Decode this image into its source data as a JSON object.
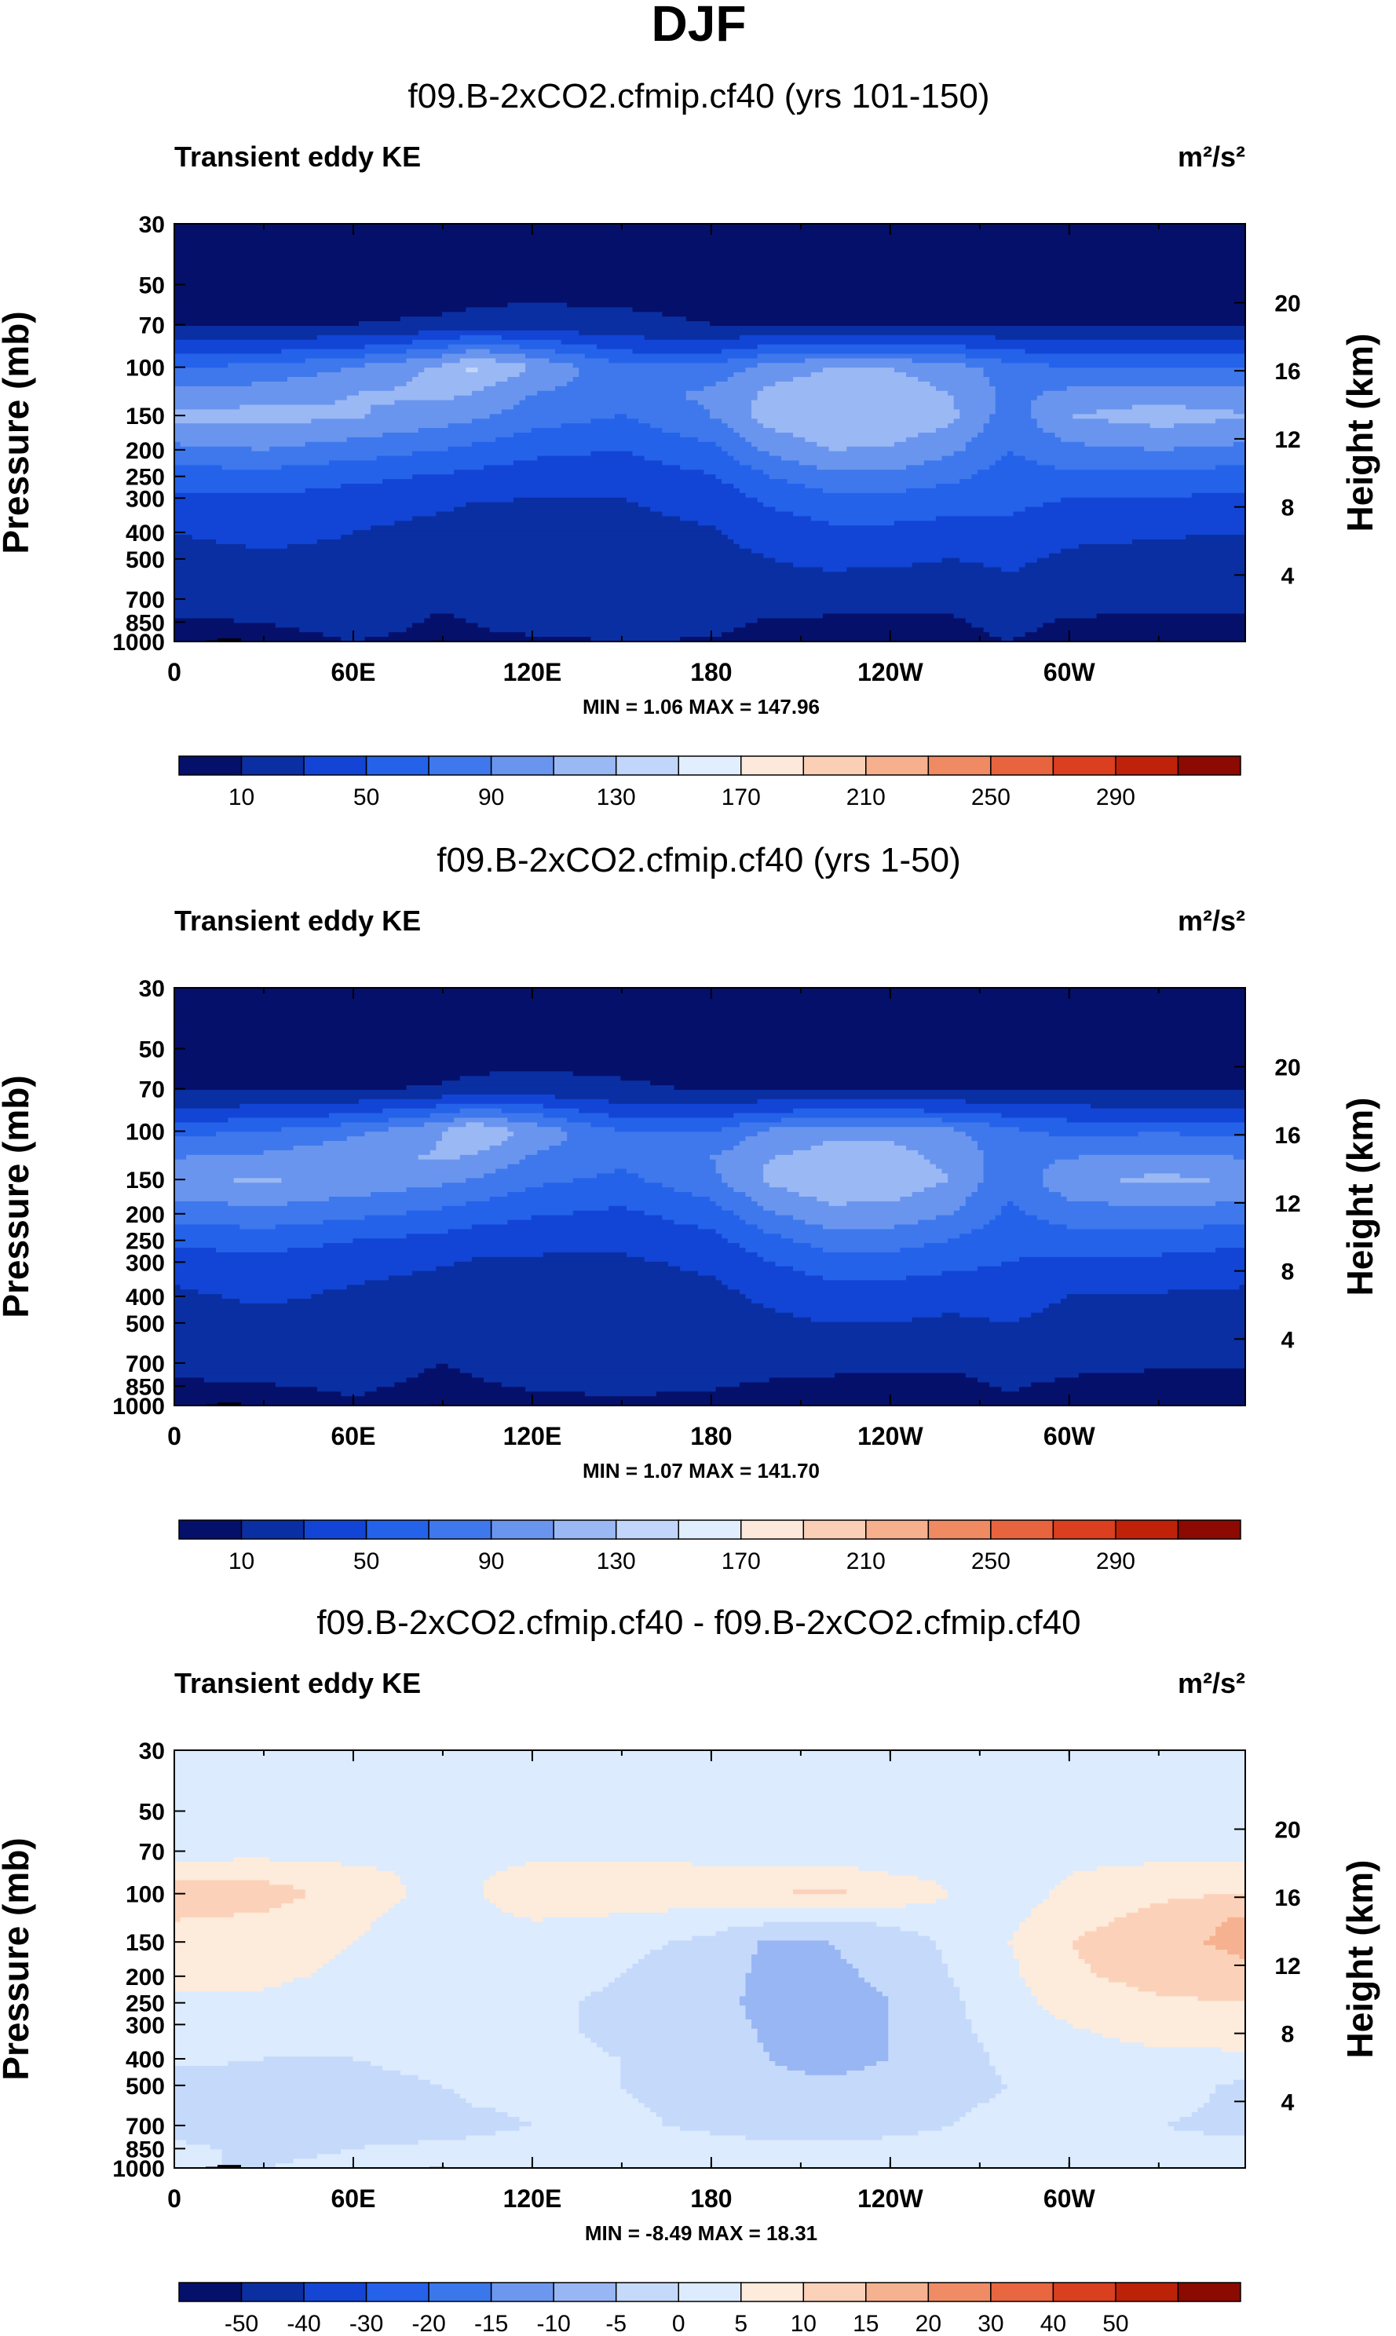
{
  "title": "DJF",
  "colors": {
    "main_cmap": [
      "#05106b",
      "#0a2fa3",
      "#1245d6",
      "#2462ea",
      "#3e78ec",
      "#6a95ee",
      "#9ab8f4",
      "#c1d6fa",
      "#e1eefe",
      "#fde9db",
      "#fbcfb6",
      "#f6b08e",
      "#ef8a63",
      "#e8643f",
      "#db3f1f",
      "#bf2208",
      "#8c0a02"
    ],
    "diff_cmap": [
      "#04106a",
      "#0b2ea1",
      "#1545d5",
      "#2561e9",
      "#3a77eb",
      "#6d97ee",
      "#98b6f4",
      "#c5d9fb",
      "#dcebfd",
      "#fdebdc",
      "#fbd2b9",
      "#f6b290",
      "#ef8c65",
      "#e86640",
      "#da3f20",
      "#bc2208",
      "#8b0a02"
    ]
  },
  "chart_data": [
    {
      "type": "contour",
      "name": "upper",
      "title": "f09.B-2xCO2.cfmip.cf40 (yrs 101-150)",
      "left_label": "Transient eddy KE",
      "units": "m²/s²",
      "ylabel": "Pressure (mb)",
      "y2label": "Height (km)",
      "x_ticks": [
        "0",
        "60E",
        "120E",
        "180",
        "120W",
        "60W"
      ],
      "p_ticks": [
        "30",
        "50",
        "70",
        "100",
        "150",
        "200",
        "250",
        "300",
        "400",
        "500",
        "700",
        "850",
        "1000"
      ],
      "h_ticks": [
        "20",
        "16",
        "12",
        "8",
        "4"
      ],
      "stats": "MIN =   1.06   MAX = 147.96",
      "min": 1.06,
      "max": 147.96,
      "levels": [
        10,
        30,
        50,
        70,
        90,
        110,
        130,
        150,
        170,
        190,
        210,
        230,
        250,
        270,
        290
      ],
      "colorbar_labels": [
        "10",
        "50",
        "90",
        "130",
        "170",
        "210",
        "250",
        "290"
      ],
      "cmap": "main",
      "field": {
        "x": [
          0,
          30,
          60,
          90,
          100,
          120,
          150,
          180,
          200,
          220,
          240,
          260,
          280,
          300,
          330,
          359
        ],
        "p": [
          30,
          50,
          70,
          85,
          100,
          125,
          150,
          200,
          250,
          300,
          400,
          500,
          700,
          850,
          1000
        ],
        "v": [
          [
            3,
            3,
            3,
            3,
            3,
            3,
            3,
            3,
            3,
            3,
            3,
            3,
            3,
            3,
            3,
            3
          ],
          [
            4,
            4,
            4,
            4,
            4,
            4,
            4,
            4,
            4,
            4,
            4,
            4,
            4,
            4,
            4,
            4
          ],
          [
            8,
            9,
            10,
            12,
            14,
            17,
            14,
            10,
            9,
            9,
            9,
            9,
            9,
            8,
            8,
            8
          ],
          [
            40,
            42,
            50,
            70,
            85,
            70,
            45,
            40,
            55,
            60,
            60,
            55,
            45,
            40,
            40,
            38
          ],
          [
            70,
            75,
            90,
            115,
            135,
            110,
            75,
            75,
            100,
            110,
            110,
            100,
            80,
            70,
            72,
            70
          ],
          [
            95,
            100,
            110,
            115,
            110,
            90,
            80,
            95,
            115,
            120,
            120,
            110,
            85,
            95,
            100,
            95
          ],
          [
            115,
            118,
            112,
            100,
            95,
            80,
            70,
            90,
            120,
            130,
            128,
            115,
            80,
            110,
            120,
            112
          ],
          [
            85,
            90,
            80,
            70,
            65,
            55,
            50,
            65,
            95,
            110,
            108,
            95,
            70,
            85,
            90,
            85
          ],
          [
            60,
            62,
            55,
            48,
            44,
            40,
            38,
            48,
            70,
            85,
            85,
            75,
            60,
            65,
            65,
            60
          ],
          [
            45,
            48,
            42,
            36,
            32,
            30,
            30,
            38,
            55,
            65,
            65,
            60,
            55,
            50,
            50,
            45
          ],
          [
            30,
            38,
            30,
            22,
            18,
            20,
            24,
            28,
            38,
            45,
            45,
            42,
            45,
            35,
            32,
            30
          ],
          [
            22,
            25,
            24,
            16,
            14,
            20,
            24,
            24,
            30,
            34,
            34,
            30,
            34,
            26,
            24,
            22
          ],
          [
            18,
            20,
            20,
            12,
            14,
            24,
            28,
            26,
            22,
            20,
            16,
            14,
            22,
            18,
            16,
            16
          ],
          [
            8,
            10,
            16,
            8,
            10,
            14,
            16,
            14,
            8,
            6,
            6,
            8,
            14,
            8,
            6,
            6
          ],
          [
            5,
            4,
            10,
            6,
            8,
            8,
            10,
            9,
            6,
            5,
            5,
            6,
            10,
            5,
            4,
            4
          ]
        ]
      }
    },
    {
      "type": "contour",
      "name": "middle",
      "title": "f09.B-2xCO2.cfmip.cf40 (yrs 1-50)",
      "left_label": "Transient eddy KE",
      "units": "m²/s²",
      "ylabel": "Pressure (mb)",
      "y2label": "Height (km)",
      "x_ticks": [
        "0",
        "60E",
        "120E",
        "180",
        "120W",
        "60W"
      ],
      "p_ticks": [
        "30",
        "50",
        "70",
        "100",
        "150",
        "200",
        "250",
        "300",
        "400",
        "500",
        "700",
        "850",
        "1000"
      ],
      "h_ticks": [
        "20",
        "16",
        "12",
        "8",
        "4"
      ],
      "stats": "MIN =   1.07   MAX = 141.70",
      "min": 1.07,
      "max": 141.7,
      "levels": [
        10,
        30,
        50,
        70,
        90,
        110,
        130,
        150,
        170,
        190,
        210,
        230,
        250,
        270,
        290
      ],
      "colorbar_labels": [
        "10",
        "50",
        "90",
        "130",
        "170",
        "210",
        "250",
        "290"
      ],
      "cmap": "main",
      "field": {
        "x": [
          0,
          30,
          60,
          90,
          100,
          120,
          150,
          180,
          200,
          220,
          240,
          260,
          280,
          300,
          330,
          359
        ],
        "p": [
          30,
          50,
          70,
          85,
          100,
          125,
          150,
          200,
          250,
          300,
          400,
          500,
          700,
          850,
          1000
        ],
        "v": [
          [
            3,
            3,
            3,
            3,
            3,
            3,
            3,
            3,
            3,
            3,
            3,
            3,
            3,
            3,
            3,
            3
          ],
          [
            4,
            4,
            4,
            4,
            4,
            4,
            4,
            4,
            4,
            4,
            4,
            4,
            4,
            4,
            4,
            4
          ],
          [
            7,
            8,
            9,
            11,
            13,
            15,
            12,
            9,
            8,
            8,
            8,
            8,
            8,
            7,
            7,
            7
          ],
          [
            35,
            38,
            45,
            65,
            80,
            65,
            40,
            38,
            50,
            55,
            55,
            50,
            42,
            38,
            36,
            34
          ],
          [
            65,
            70,
            85,
            110,
            130,
            105,
            70,
            70,
            95,
            105,
            105,
            95,
            75,
            65,
            68,
            65
          ],
          [
            90,
            95,
            105,
            112,
            108,
            88,
            75,
            90,
            110,
            118,
            118,
            105,
            80,
            90,
            95,
            90
          ],
          [
            108,
            112,
            105,
            95,
            90,
            75,
            65,
            85,
            115,
            126,
            124,
            110,
            75,
            105,
            115,
            108
          ],
          [
            78,
            84,
            75,
            65,
            60,
            52,
            46,
            60,
            88,
            104,
            102,
            90,
            66,
            80,
            84,
            80
          ],
          [
            55,
            58,
            50,
            44,
            40,
            36,
            34,
            44,
            64,
            80,
            80,
            70,
            56,
            60,
            60,
            55
          ],
          [
            40,
            44,
            38,
            32,
            28,
            27,
            27,
            34,
            50,
            60,
            60,
            55,
            50,
            45,
            45,
            40
          ],
          [
            26,
            34,
            26,
            20,
            16,
            17,
            20,
            24,
            34,
            40,
            40,
            38,
            40,
            30,
            28,
            26
          ],
          [
            19,
            22,
            20,
            14,
            12,
            16,
            20,
            20,
            26,
            30,
            30,
            26,
            30,
            22,
            20,
            18
          ],
          [
            16,
            18,
            16,
            10,
            12,
            20,
            24,
            22,
            18,
            16,
            13,
            12,
            18,
            14,
            12,
            12
          ],
          [
            7,
            9,
            12,
            7,
            8,
            11,
            12,
            11,
            7,
            5,
            5,
            6,
            11,
            7,
            5,
            5
          ],
          [
            4,
            4,
            8,
            5,
            6,
            7,
            8,
            7,
            5,
            4,
            4,
            5,
            8,
            4,
            3,
            3
          ]
        ]
      }
    },
    {
      "type": "contour",
      "name": "difference",
      "title": "f09.B-2xCO2.cfmip.cf40 - f09.B-2xCO2.cfmip.cf40",
      "left_label": "Transient eddy KE",
      "units": "m²/s²",
      "ylabel": "Pressure (mb)",
      "y2label": "Height (km)",
      "x_ticks": [
        "0",
        "60E",
        "120E",
        "180",
        "120W",
        "60W"
      ],
      "p_ticks": [
        "30",
        "50",
        "70",
        "100",
        "150",
        "200",
        "250",
        "300",
        "400",
        "500",
        "700",
        "850",
        "1000"
      ],
      "h_ticks": [
        "20",
        "16",
        "12",
        "8",
        "4"
      ],
      "stats": "MIN =  -8.49   MAX = 18.31",
      "min": -8.49,
      "max": 18.31,
      "levels": [
        -50,
        -40,
        -30,
        -20,
        -15,
        -10,
        -5,
        0,
        5,
        10,
        15,
        20,
        30,
        40,
        50
      ],
      "colorbar_labels": [
        "-50",
        "-40",
        "-30",
        "-20",
        "-15",
        "-10",
        "-5",
        "0",
        "5",
        "10",
        "15",
        "20",
        "30",
        "40",
        "50"
      ],
      "cmap": "diff",
      "field": {
        "x": [
          0,
          30,
          60,
          90,
          100,
          120,
          150,
          180,
          200,
          220,
          240,
          260,
          280,
          300,
          330,
          359
        ],
        "p": [
          30,
          50,
          70,
          85,
          100,
          125,
          150,
          200,
          250,
          300,
          400,
          500,
          700,
          850,
          1000
        ],
        "v": [
          [
            1,
            1,
            1,
            1,
            1,
            1,
            1,
            1,
            1,
            1,
            1,
            1,
            1,
            1,
            1,
            1
          ],
          [
            1,
            1,
            1,
            1,
            1,
            1,
            1,
            1,
            1,
            1,
            1,
            1,
            1,
            1,
            1,
            1
          ],
          [
            3,
            3,
            2,
            2,
            3,
            3,
            3,
            2,
            2,
            2,
            2,
            3,
            2,
            3,
            3,
            3
          ],
          [
            8,
            9,
            7,
            3,
            4,
            7,
            8,
            7,
            6,
            7,
            5,
            4,
            3,
            5,
            7,
            8
          ],
          [
            14,
            12,
            8,
            3,
            4,
            10,
            8,
            9,
            10,
            11,
            9,
            5,
            3,
            6,
            9,
            10
          ],
          [
            10,
            9,
            6,
            2,
            3,
            5,
            4,
            2,
            1,
            0,
            1,
            3,
            4,
            8,
            12,
            16
          ],
          [
            8,
            7,
            5,
            2,
            2,
            3,
            1,
            -1,
            -6,
            -5,
            -3,
            1,
            5,
            10,
            14,
            16
          ],
          [
            7,
            6,
            4,
            1,
            1,
            2,
            0,
            -2,
            -7,
            -6,
            -4,
            0,
            4,
            9,
            12,
            14
          ],
          [
            4,
            4,
            2,
            1,
            1,
            1,
            -1,
            -3,
            -7,
            -7,
            -5,
            -1,
            3,
            7,
            9,
            10
          ],
          [
            2,
            2,
            1,
            1,
            1,
            1,
            -1,
            -3,
            -6,
            -7,
            -5,
            -1,
            2,
            5,
            7,
            8
          ],
          [
            1,
            0,
            0,
            1,
            1,
            1,
            0,
            -2,
            -5,
            -7,
            -5,
            -2,
            1,
            3,
            4,
            4
          ],
          [
            -2,
            -2,
            -1,
            0,
            1,
            1,
            0,
            -2,
            -4,
            -4,
            -3,
            -1,
            0,
            2,
            2,
            -1
          ],
          [
            -2,
            -3,
            -2,
            -2,
            -1,
            0,
            1,
            -1,
            -2,
            -2,
            -1,
            0,
            1,
            1,
            0,
            -1
          ],
          [
            1,
            -1,
            0,
            1,
            1,
            2,
            2,
            2,
            1,
            1,
            1,
            1,
            1,
            1,
            1,
            1
          ],
          [
            0,
            0,
            1,
            1,
            1,
            1,
            1,
            1,
            1,
            1,
            1,
            1,
            1,
            1,
            1,
            1
          ]
        ]
      }
    }
  ]
}
